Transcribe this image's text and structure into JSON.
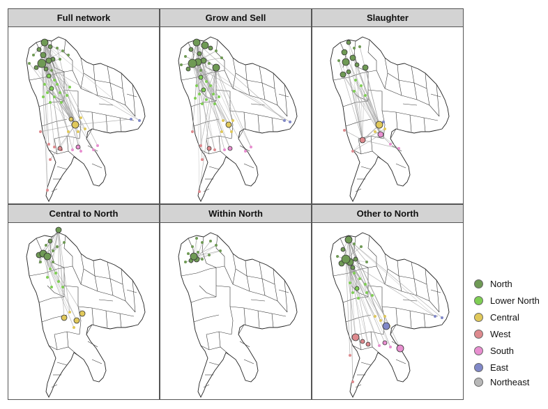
{
  "panels": [
    {
      "title": "Full network",
      "key": "full"
    },
    {
      "title": "Grow and Sell",
      "key": "grow"
    },
    {
      "title": "Slaughter",
      "key": "slaughter"
    },
    {
      "title": "Central to North",
      "key": "central"
    },
    {
      "title": "Within North",
      "key": "within"
    },
    {
      "title": "Other to North",
      "key": "other"
    }
  ],
  "legend": [
    {
      "label": "North",
      "color": "#6f9a55"
    },
    {
      "label": "Lower North",
      "color": "#7fce54"
    },
    {
      "label": "Central",
      "color": "#e0c85a"
    },
    {
      "label": "West",
      "color": "#de8a8e"
    },
    {
      "label": "South",
      "color": "#e88fd0"
    },
    {
      "label": "East",
      "color": "#8088c8"
    },
    {
      "label": "Northeast",
      "color": "#b8b8b8"
    }
  ]
}
